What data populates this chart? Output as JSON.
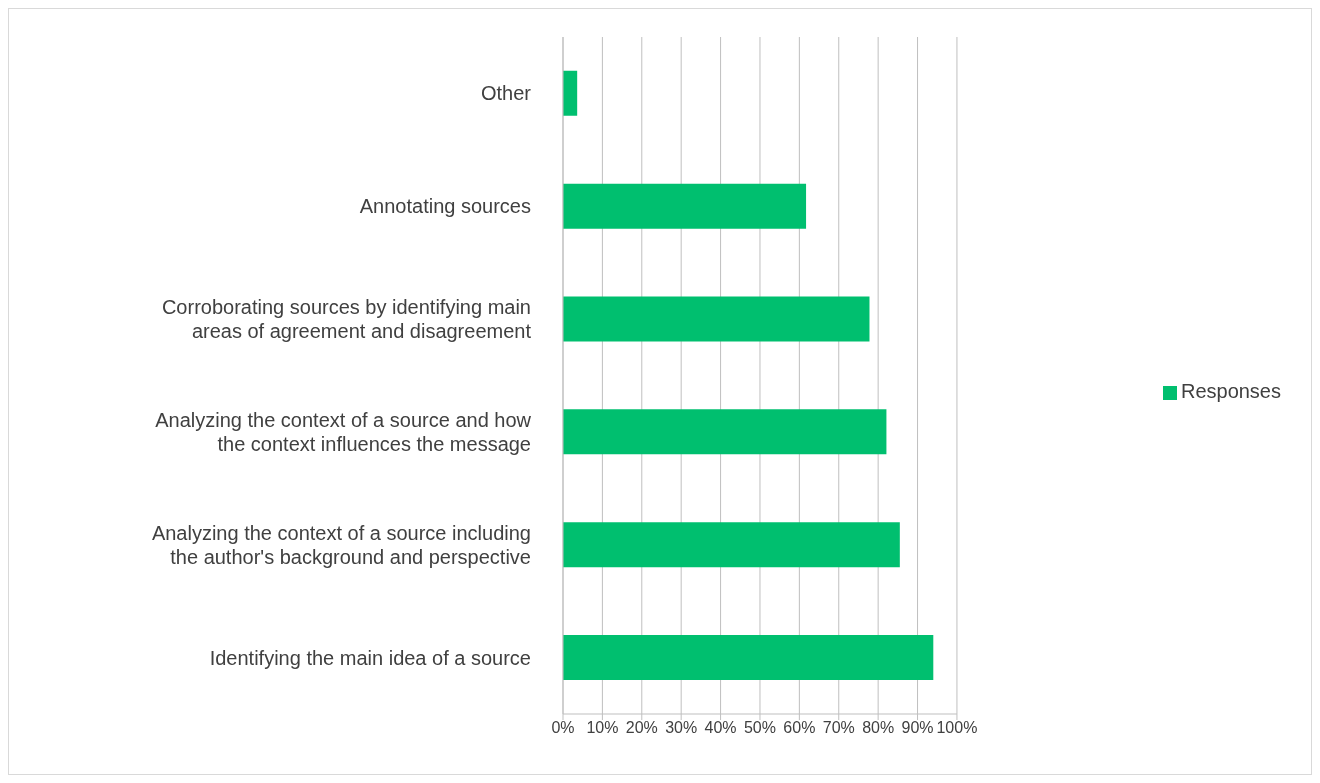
{
  "chart_data": {
    "type": "bar",
    "orientation": "horizontal",
    "categories": [
      "Other",
      "Annotating sources",
      "Corroborating sources by identifying main areas of agreement and disagreement",
      "Analyzing the context of a source and how the context influences the message",
      "Analyzing the context of a source including the author's background and perspective",
      "Identifying the main idea of a source"
    ],
    "series": [
      {
        "name": "Responses",
        "color": "#00bf6f",
        "values": [
          3.6,
          61.7,
          77.8,
          82.1,
          85.5,
          94.0
        ]
      }
    ],
    "xlim": [
      0,
      100
    ],
    "xticks": [
      {
        "value": 0,
        "label": "0%"
      },
      {
        "value": 10,
        "label": "10%"
      },
      {
        "value": 20,
        "label": "20%"
      },
      {
        "value": 30,
        "label": "30%"
      },
      {
        "value": 40,
        "label": "40%"
      },
      {
        "value": 50,
        "label": "50%"
      },
      {
        "value": 60,
        "label": "60%"
      },
      {
        "value": 70,
        "label": "70%"
      },
      {
        "value": 80,
        "label": "80%"
      },
      {
        "value": 90,
        "label": "90%"
      },
      {
        "value": 100,
        "label": "100%"
      }
    ],
    "grid": "x",
    "legend": "right"
  }
}
